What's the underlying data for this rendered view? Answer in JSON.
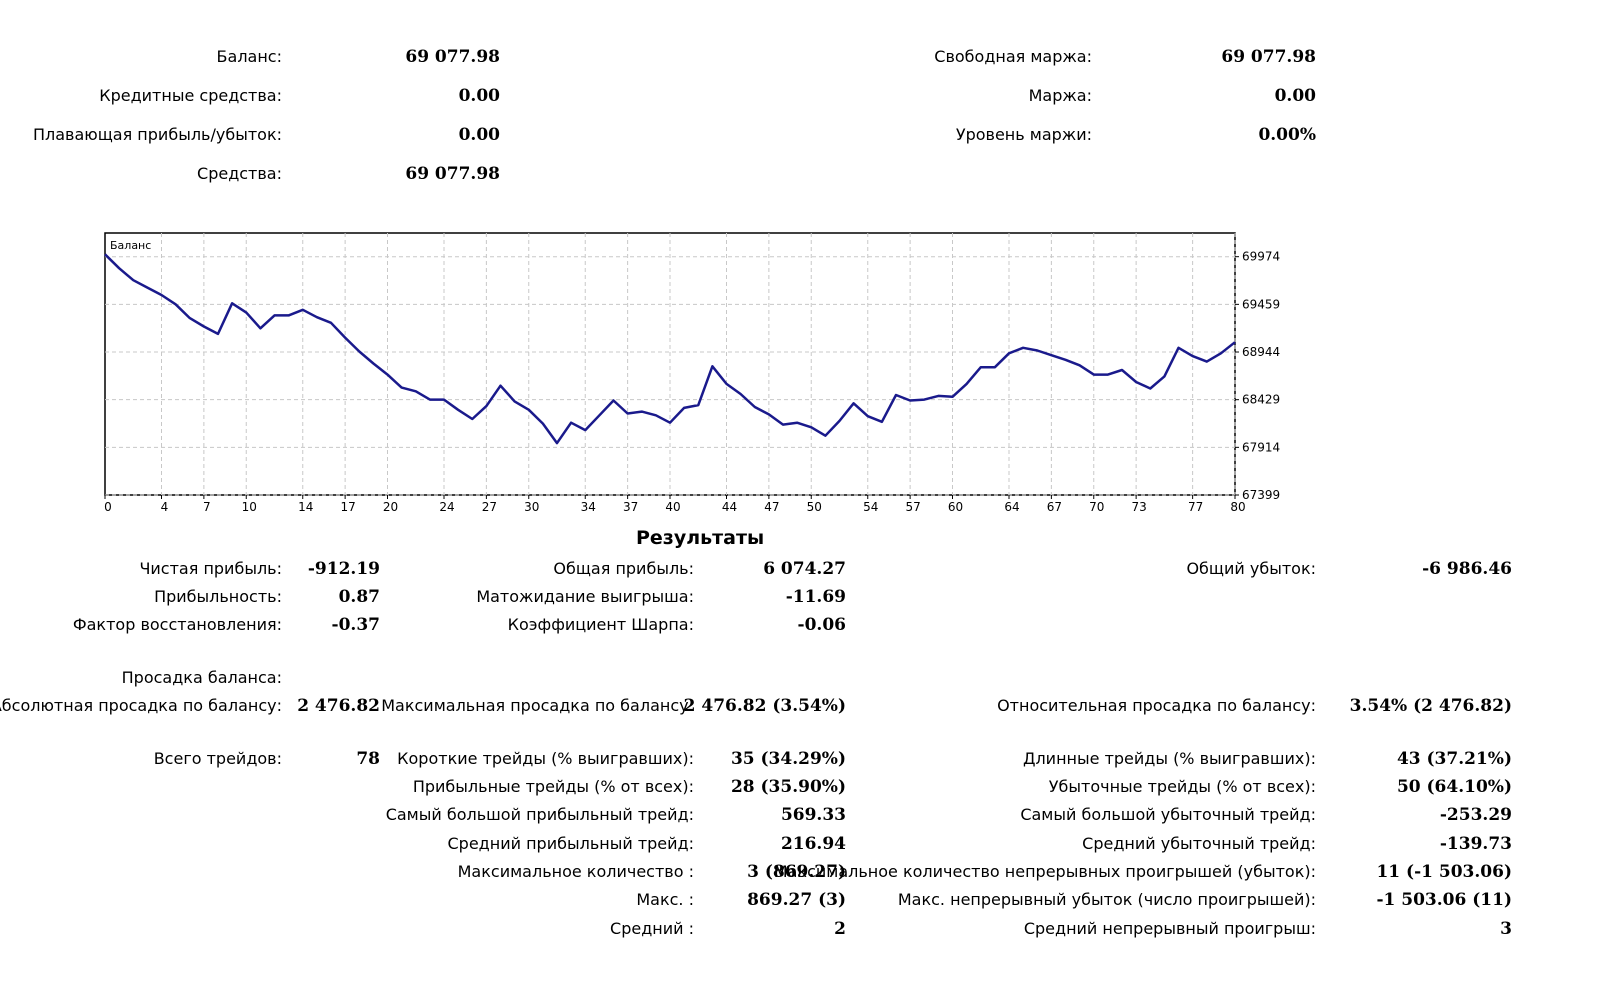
{
  "summary": {
    "balance": {
      "label": "Баланс:",
      "value": "69 077.98"
    },
    "credit": {
      "label": "Кредитные средства:",
      "value": "0.00"
    },
    "floating_pl": {
      "label": "Плавающая прибыль/убыток:",
      "value": "0.00"
    },
    "equity": {
      "label": "Средства:",
      "value": "69 077.98"
    },
    "free_margin": {
      "label": "Свободная маржа:",
      "value": "69 077.98"
    },
    "margin": {
      "label": "Маржа:",
      "value": "0.00"
    },
    "margin_level": {
      "label": "Уровень маржи:",
      "value": "0.00%"
    }
  },
  "chart_data": {
    "type": "line",
    "title": "Баланс",
    "xlabel": "",
    "ylabel": "",
    "x_ticks": [
      "0",
      "4",
      "7",
      "10",
      "14",
      "17",
      "20",
      "24",
      "27",
      "30",
      "34",
      "37",
      "40",
      "44",
      "47",
      "50",
      "54",
      "57",
      "60",
      "64",
      "67",
      "70",
      "73",
      "77",
      "80"
    ],
    "y_ticks": [
      "67399",
      "67914",
      "68429",
      "68944",
      "69459",
      "69974"
    ],
    "xlim": [
      0,
      80
    ],
    "ylim": [
      67399,
      70230
    ],
    "series": [
      {
        "name": "Баланс",
        "color": "#1a1a8c",
        "x": [
          0,
          1,
          2,
          3,
          4,
          5,
          6,
          7,
          8,
          9,
          10,
          11,
          12,
          13,
          14,
          15,
          16,
          17,
          18,
          19,
          20,
          21,
          22,
          23,
          24,
          25,
          26,
          27,
          28,
          29,
          30,
          31,
          32,
          33,
          34,
          35,
          36,
          37,
          38,
          39,
          40,
          41,
          42,
          43,
          44,
          45,
          46,
          47,
          48,
          49,
          50,
          51,
          52,
          53,
          54,
          55,
          56,
          57,
          58,
          59,
          60,
          61,
          62,
          63,
          64,
          65,
          66,
          67,
          68,
          69,
          70,
          71,
          72,
          73,
          74,
          75,
          76,
          77,
          78,
          79,
          80
        ],
        "values": [
          70000,
          69850,
          69720,
          69640,
          69560,
          69460,
          69310,
          69220,
          69140,
          69470,
          69370,
          69200,
          69340,
          69340,
          69400,
          69320,
          69260,
          69100,
          68950,
          68820,
          68700,
          68560,
          68520,
          68430,
          68430,
          68320,
          68220,
          68360,
          68580,
          68410,
          68320,
          68170,
          67960,
          68180,
          68100,
          68260,
          68420,
          68280,
          68300,
          68260,
          68180,
          68340,
          68370,
          68790,
          68600,
          68490,
          68350,
          68270,
          68160,
          68180,
          68130,
          68040,
          68200,
          68390,
          68250,
          68190,
          68480,
          68420,
          68430,
          68470,
          68460,
          68600,
          68780,
          68780,
          68930,
          68990,
          68960,
          68910,
          68860,
          68800,
          68700,
          68700,
          68750,
          68620,
          68550,
          68680,
          68990,
          68900,
          68840,
          68930,
          69050
        ]
      }
    ]
  },
  "results": {
    "title": "Результаты",
    "net_profit": {
      "label": "Чистая прибыль:",
      "value": "-912.19"
    },
    "gross_profit": {
      "label": "Общая прибыль:",
      "value": "6 074.27"
    },
    "gross_loss": {
      "label": "Общий убыток:",
      "value": "-6 986.46"
    },
    "profit_factor": {
      "label": "Прибыльность:",
      "value": "0.87"
    },
    "expected_payoff": {
      "label": "Матожидание выигрыша:",
      "value": "-11.69"
    },
    "recovery_factor": {
      "label": "Фактор восстановления:",
      "value": "-0.37"
    },
    "sharpe_ratio": {
      "label": "Коэффициент Шарпа:",
      "value": "-0.06"
    },
    "balance_drawdown_header": "Просадка баланса:",
    "abs_drawdown": {
      "label": "Абсолютная просадка по балансу:",
      "value": "2 476.82"
    },
    "max_drawdown": {
      "label": "Максимальная просадка по балансу:",
      "value": "2 476.82 (3.54%)"
    },
    "rel_drawdown": {
      "label": "Относительная просадка по балансу:",
      "value": "3.54% (2 476.82)"
    },
    "total_trades": {
      "label": "Всего трейдов:",
      "value": "78"
    },
    "short_trades": {
      "label": "Короткие трейды (% выигравших):",
      "value": "35 (34.29%)"
    },
    "long_trades": {
      "label": "Длинные трейды (% выигравших):",
      "value": "43 (37.21%)"
    },
    "profit_trades": {
      "label": "Прибыльные трейды (% от всех):",
      "value": "28 (35.90%)"
    },
    "loss_trades": {
      "label": "Убыточные трейды (% от всех):",
      "value": "50 (64.10%)"
    },
    "largest_profit": {
      "label": "Самый большой прибыльный трейд:",
      "value": "569.33"
    },
    "largest_loss": {
      "label": "Самый большой убыточный трейд:",
      "value": "-253.29"
    },
    "avg_profit": {
      "label": "Средний прибыльный трейд:",
      "value": "216.94"
    },
    "avg_loss": {
      "label": "Средний убыточный трейд:",
      "value": "-139.73"
    },
    "max_consec_wins": {
      "label": "Максимальное количество :",
      "value": "3 (869.27)"
    },
    "max_consec_losses": {
      "label": "Максимальное количество непрерывных проигрышей (убыток):",
      "value": "11 (-1 503.06)"
    },
    "max_consec_profit": {
      "label": "Макс. :",
      "value": "869.27 (3)"
    },
    "max_consec_loss": {
      "label": "Макс. непрерывный убыток (число проигрышей):",
      "value": "-1 503.06 (11)"
    },
    "avg_consec_wins": {
      "label": "Средний :",
      "value": "2"
    },
    "avg_consec_losses": {
      "label": "Средний непрерывный проигрыш:",
      "value": "3"
    }
  }
}
